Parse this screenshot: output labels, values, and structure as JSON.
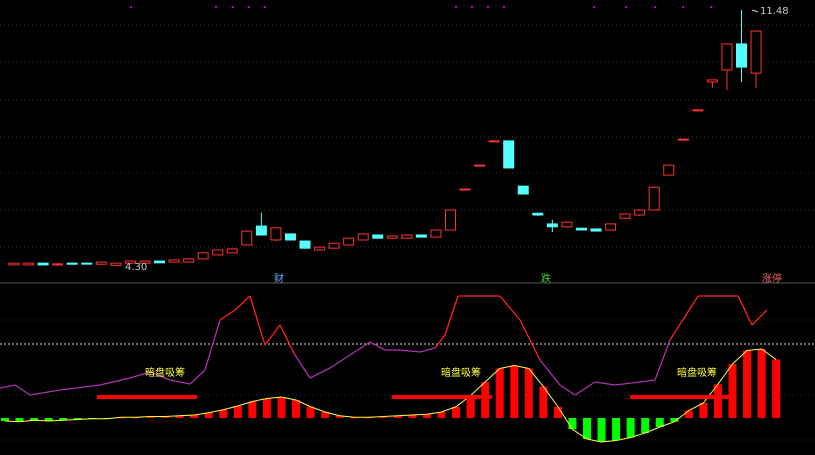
{
  "colors": {
    "up": "#ff3232",
    "down": "#54ffff",
    "bar_up": "#ff0000",
    "bar_down": "#00ff00",
    "line_low": "#b030b0",
    "line_high": "#ff2020",
    "signal": "#ffff40",
    "dots": "#b000b0"
  },
  "price_chart": {
    "high_label": "11.48",
    "low_label": "4.30",
    "candles": [
      [
        4.33,
        4.38,
        4.38,
        4.33
      ],
      [
        4.33,
        4.38,
        4.38,
        4.33
      ],
      [
        4.38,
        4.33,
        4.38,
        4.33
      ],
      [
        4.33,
        4.36,
        4.38,
        4.3
      ],
      [
        4.38,
        4.35,
        4.4,
        4.35
      ],
      [
        4.38,
        4.36,
        4.4,
        4.35
      ],
      [
        4.35,
        4.41,
        4.42,
        4.33
      ],
      [
        4.32,
        4.38,
        4.38,
        4.3
      ],
      [
        4.38,
        4.44,
        4.45,
        4.36
      ],
      [
        4.38,
        4.44,
        4.46,
        4.36
      ],
      [
        4.44,
        4.39,
        4.45,
        4.38
      ],
      [
        4.41,
        4.47,
        4.48,
        4.4
      ],
      [
        4.41,
        4.5,
        4.51,
        4.4
      ],
      [
        4.5,
        4.67,
        4.68,
        4.5
      ],
      [
        4.61,
        4.75,
        4.76,
        4.61
      ],
      [
        4.67,
        4.78,
        4.79,
        4.66
      ],
      [
        4.89,
        5.28,
        5.3,
        4.89
      ],
      [
        5.42,
        5.17,
        5.8,
        5.15
      ],
      [
        5.03,
        5.37,
        5.38,
        5.0
      ],
      [
        5.2,
        5.03,
        5.21,
        5.02
      ],
      [
        5.0,
        4.8,
        5.01,
        4.78
      ],
      [
        4.75,
        4.83,
        4.85,
        4.74
      ],
      [
        4.8,
        4.94,
        4.95,
        4.79
      ],
      [
        4.89,
        5.08,
        5.09,
        4.88
      ],
      [
        5.03,
        5.2,
        5.21,
        5.02
      ],
      [
        5.17,
        5.08,
        5.18,
        5.06
      ],
      [
        5.08,
        5.14,
        5.15,
        5.07
      ],
      [
        5.08,
        5.17,
        5.18,
        5.07
      ],
      [
        5.17,
        5.11,
        5.18,
        5.1
      ],
      [
        5.11,
        5.31,
        5.32,
        5.1
      ],
      [
        5.31,
        5.87,
        5.88,
        5.3
      ],
      [
        6.46,
        6.46,
        6.47,
        6.45
      ],
      [
        7.13,
        7.13,
        7.14,
        7.12
      ],
      [
        7.81,
        7.81,
        7.82,
        7.8
      ],
      [
        7.81,
        7.05,
        7.82,
        7.04
      ],
      [
        6.54,
        6.32,
        6.55,
        6.3
      ],
      [
        5.78,
        5.73,
        5.8,
        5.7
      ],
      [
        5.48,
        5.4,
        5.6,
        5.25
      ],
      [
        5.4,
        5.53,
        5.54,
        5.39
      ],
      [
        5.36,
        5.31,
        5.37,
        5.3
      ],
      [
        5.34,
        5.28,
        5.35,
        5.27
      ],
      [
        5.31,
        5.48,
        5.49,
        5.3
      ],
      [
        5.64,
        5.76,
        5.78,
        5.62
      ],
      [
        5.73,
        5.87,
        5.9,
        5.7
      ],
      [
        5.87,
        6.51,
        6.52,
        5.86
      ],
      [
        6.85,
        7.13,
        7.14,
        6.84
      ],
      [
        7.86,
        7.86,
        7.87,
        7.85
      ],
      [
        8.68,
        8.68,
        8.69,
        8.67
      ],
      [
        9.46,
        9.52,
        9.53,
        9.3
      ],
      [
        9.8,
        10.53,
        10.54,
        9.24
      ],
      [
        10.53,
        9.88,
        11.48,
        9.46
      ],
      [
        9.71,
        10.89,
        10.9,
        9.29
      ]
    ],
    "markers": [
      {
        "text": "财",
        "color": "#6fa8ff",
        "index": 17
      },
      {
        "text": "跌",
        "color": "#40d040",
        "index": 36
      },
      {
        "text": "涨停",
        "color": "#ff6060",
        "index": 51
      }
    ]
  },
  "indicator": {
    "annotation": "暗盘吸筹",
    "line": [
      [
        0,
        388
      ],
      [
        15,
        385
      ],
      [
        30,
        395
      ],
      [
        60,
        390
      ],
      [
        100,
        385
      ],
      [
        130,
        378
      ],
      [
        150,
        372
      ],
      [
        170,
        380
      ],
      [
        190,
        384
      ],
      [
        205,
        370
      ],
      [
        220,
        320
      ],
      [
        235,
        310
      ],
      [
        250,
        296
      ],
      [
        265,
        345
      ],
      [
        280,
        325
      ],
      [
        295,
        355
      ],
      [
        310,
        378
      ],
      [
        330,
        368
      ],
      [
        350,
        355
      ],
      [
        370,
        342
      ],
      [
        385,
        350
      ],
      [
        400,
        350
      ],
      [
        420,
        352
      ],
      [
        435,
        348
      ],
      [
        445,
        335
      ],
      [
        458,
        296
      ],
      [
        500,
        296
      ],
      [
        520,
        320
      ],
      [
        540,
        360
      ],
      [
        560,
        385
      ],
      [
        575,
        395
      ],
      [
        595,
        382
      ],
      [
        615,
        385
      ],
      [
        640,
        382
      ],
      [
        655,
        380
      ],
      [
        670,
        340
      ],
      [
        698,
        296
      ],
      [
        738,
        296
      ],
      [
        752,
        325
      ],
      [
        767,
        310
      ]
    ],
    "histogram": [
      -4,
      -5,
      -3,
      -4,
      -3,
      -2,
      -1,
      -1,
      1,
      1,
      2,
      2,
      3,
      4,
      7,
      11,
      16,
      22,
      26,
      28,
      24,
      15,
      8,
      3,
      1,
      1,
      2,
      3,
      4,
      5,
      8,
      15,
      30,
      48,
      66,
      70,
      66,
      42,
      15,
      -15,
      -28,
      -32,
      -30,
      -26,
      -20,
      -12,
      -5,
      10,
      20,
      45,
      72,
      90,
      92,
      78
    ]
  }
}
